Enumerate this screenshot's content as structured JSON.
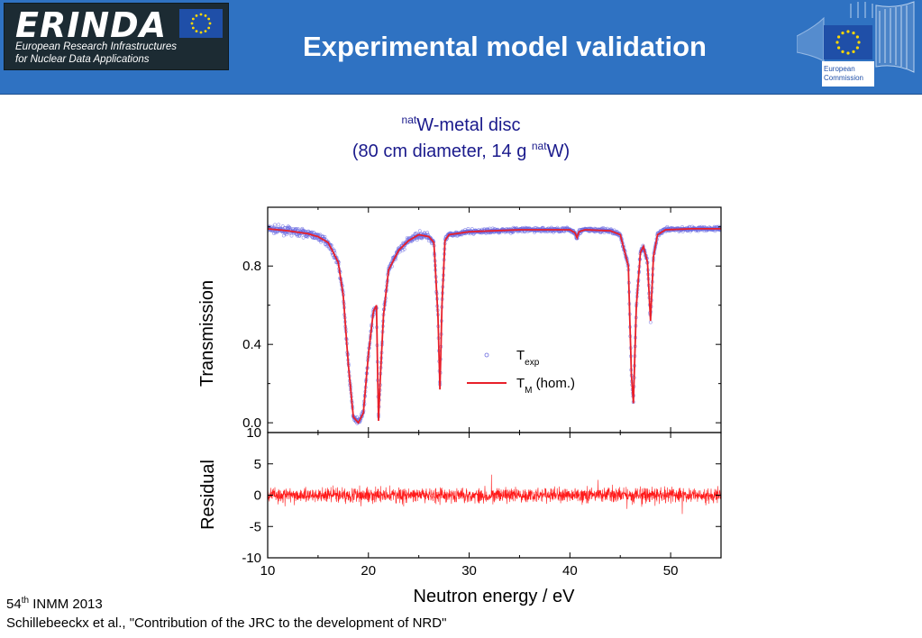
{
  "header": {
    "logo_word": "ERINDA",
    "logo_line1": "European Research Infrastructures",
    "logo_line2": "for Nuclear Data Applications",
    "title": "Experimental model validation",
    "ec_line1": "European",
    "ec_line2": "Commission"
  },
  "figure": {
    "subtitle_sup": "nat",
    "subtitle_main": "W-metal disc",
    "subtitle2_pre": "(80 cm diameter, 14 g ",
    "subtitle2_sup": "nat",
    "subtitle2_post": "W)"
  },
  "footer": {
    "conf_num": "54",
    "conf_sup": "th",
    "conf_rest": " INMM  2013",
    "citation": "Schillebeeckx  et al., \"Contribution of the JRC to the development of NRD\""
  },
  "colors": {
    "header_bg": "#2f72c2",
    "data_points": "#6a6ae0",
    "model_line": "#e8202a",
    "residual": "#ff1a1a"
  },
  "chart_data": [
    {
      "type": "scatter",
      "panel": "top",
      "ylabel": "Transmission",
      "xlim": [
        10,
        55
      ],
      "ylim": [
        -0.05,
        1.1
      ],
      "yticks": [
        0.0,
        0.4,
        0.8
      ],
      "ytick_labels": [
        "0.0",
        "0.4",
        "0.8"
      ],
      "grid": false,
      "legend_position": "center-right",
      "series": [
        {
          "name": "T",
          "name_sub": "exp",
          "style": "open circles",
          "color": "#6a6ae0"
        },
        {
          "name": "T",
          "name_sub": "M",
          "name_suffix": " (hom.)",
          "style": "line",
          "color": "#e8202a",
          "x": [
            10,
            12,
            14,
            15,
            16,
            17,
            17.5,
            18,
            18.5,
            19,
            19.5,
            20,
            20.5,
            20.8,
            21.0,
            21.2,
            21.5,
            22,
            23,
            24,
            25,
            26,
            26.5,
            26.9,
            27.1,
            27.3,
            27.6,
            28,
            30,
            35,
            40,
            40.5,
            40.7,
            40.9,
            41.5,
            44,
            45,
            45.8,
            46.1,
            46.3,
            46.6,
            47,
            47.3,
            47.7,
            48.0,
            48.3,
            48.7,
            49.5,
            52,
            55
          ],
          "y": [
            0.99,
            0.98,
            0.965,
            0.95,
            0.92,
            0.82,
            0.65,
            0.3,
            0.03,
            0.0,
            0.05,
            0.35,
            0.57,
            0.6,
            0.01,
            0.25,
            0.55,
            0.78,
            0.88,
            0.93,
            0.96,
            0.95,
            0.92,
            0.55,
            0.17,
            0.6,
            0.93,
            0.96,
            0.975,
            0.985,
            0.985,
            0.97,
            0.945,
            0.975,
            0.985,
            0.98,
            0.96,
            0.8,
            0.25,
            0.1,
            0.6,
            0.87,
            0.9,
            0.82,
            0.52,
            0.85,
            0.96,
            0.985,
            0.99,
            0.99
          ]
        }
      ]
    },
    {
      "type": "line",
      "panel": "bottom",
      "xlabel": "Neutron energy / eV",
      "ylabel": "Residual",
      "xlim": [
        10,
        55
      ],
      "xticks": [
        10,
        20,
        30,
        40,
        50
      ],
      "xtick_labels": [
        "10",
        "20",
        "30",
        "40",
        "50"
      ],
      "ylim": [
        -10,
        10
      ],
      "yticks": [
        -10,
        -5,
        0,
        5,
        10
      ],
      "ytick_labels": [
        "-10",
        "-5",
        "0",
        "5",
        "10"
      ],
      "grid": false,
      "series": [
        {
          "name": "",
          "color": "#ff1a1a",
          "approx_amplitude": 2,
          "approx_range": [
            -4,
            4
          ]
        }
      ]
    }
  ]
}
